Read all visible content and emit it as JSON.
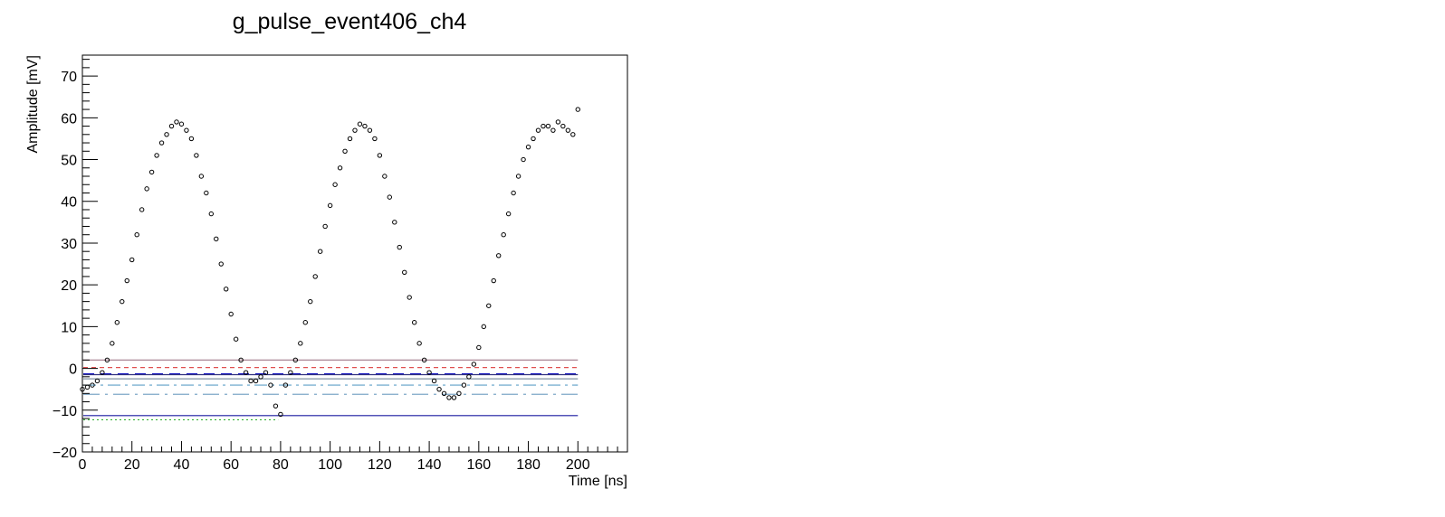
{
  "chart_data": {
    "type": "scatter",
    "title": "g_pulse_event406_ch4",
    "xlabel": "Time [ns]",
    "ylabel": "Amplitude [mV]",
    "xlim": [
      0,
      220
    ],
    "ylim": [
      -20,
      75
    ],
    "x_ticks": [
      "0",
      "20",
      "40",
      "60",
      "80",
      "100",
      "120",
      "140",
      "160",
      "180",
      "200"
    ],
    "y_ticks": [
      "−20",
      "−10",
      "0",
      "10",
      "20",
      "30",
      "40",
      "50",
      "60",
      "70"
    ],
    "x_tick_values": [
      0,
      20,
      40,
      60,
      80,
      100,
      120,
      140,
      160,
      180,
      200
    ],
    "y_tick_values": [
      -20,
      -10,
      0,
      10,
      20,
      30,
      40,
      50,
      60,
      70
    ],
    "grid": false,
    "legend": "none",
    "series": [
      {
        "marker": "open-circle",
        "color": "#000000",
        "x": [
          0,
          2,
          4,
          6,
          8,
          10,
          12,
          14,
          16,
          18,
          20,
          22,
          24,
          26,
          28,
          30,
          32,
          34,
          36,
          38,
          40,
          42,
          44,
          46,
          48,
          50,
          52,
          54,
          56,
          58,
          60,
          62,
          64,
          66,
          68,
          70,
          72,
          74,
          76,
          78,
          80,
          82,
          84,
          86,
          88,
          90,
          92,
          94,
          96,
          98,
          100,
          102,
          104,
          106,
          108,
          110,
          112,
          114,
          116,
          118,
          120,
          122,
          124,
          126,
          128,
          130,
          132,
          134,
          136,
          138,
          140,
          142,
          144,
          146,
          148,
          150,
          152,
          154,
          156,
          158,
          160,
          162,
          164,
          166,
          168,
          170,
          172,
          174,
          176,
          178,
          180,
          182,
          184,
          186,
          188,
          190,
          192,
          194,
          196,
          198,
          200
        ],
        "y": [
          -5,
          -4.5,
          -4,
          -3,
          -1,
          2,
          6,
          11,
          16,
          21,
          26,
          32,
          38,
          43,
          47,
          51,
          54,
          56,
          58,
          59,
          58.5,
          57,
          55,
          51,
          46,
          42,
          37,
          31,
          25,
          19,
          13,
          7,
          2,
          -1,
          -3,
          -3,
          -2,
          -1,
          -4,
          -9,
          -11,
          -4,
          -1,
          2,
          6,
          11,
          16,
          22,
          28,
          34,
          39,
          44,
          48,
          52,
          55,
          57,
          58.5,
          58,
          57,
          55,
          51,
          46,
          41,
          35,
          29,
          23,
          17,
          11,
          6,
          2,
          -1,
          -3,
          -5,
          -6,
          -7,
          -7,
          -6,
          -4,
          -2,
          1,
          5,
          10,
          15,
          21,
          27,
          32,
          37,
          42,
          46,
          50,
          53,
          55,
          57,
          58,
          58,
          57,
          59,
          58,
          57,
          56,
          62
        ]
      }
    ],
    "hlines": [
      {
        "y": 2.0,
        "color": "#a07888",
        "style": "solid"
      },
      {
        "y": 0.2,
        "color": "#e05050",
        "style": "dashed"
      },
      {
        "y": -1.3,
        "color": "#1010c8",
        "style": "longdash"
      },
      {
        "y": -1.5,
        "color": "#303080",
        "style": "solid"
      },
      {
        "y": -2.5,
        "color": "#8090a0",
        "style": "solid"
      },
      {
        "y": -4.0,
        "color": "#5fa0c8",
        "style": "dashdot"
      },
      {
        "y": -6.2,
        "color": "#7fa8c8",
        "style": "longdashdot"
      },
      {
        "y": -11.3,
        "color": "#1a1aa0",
        "style": "solid"
      }
    ],
    "green_line": {
      "y": -12.3,
      "x_end": 79,
      "color": "#30b030",
      "style": "dotted"
    }
  }
}
